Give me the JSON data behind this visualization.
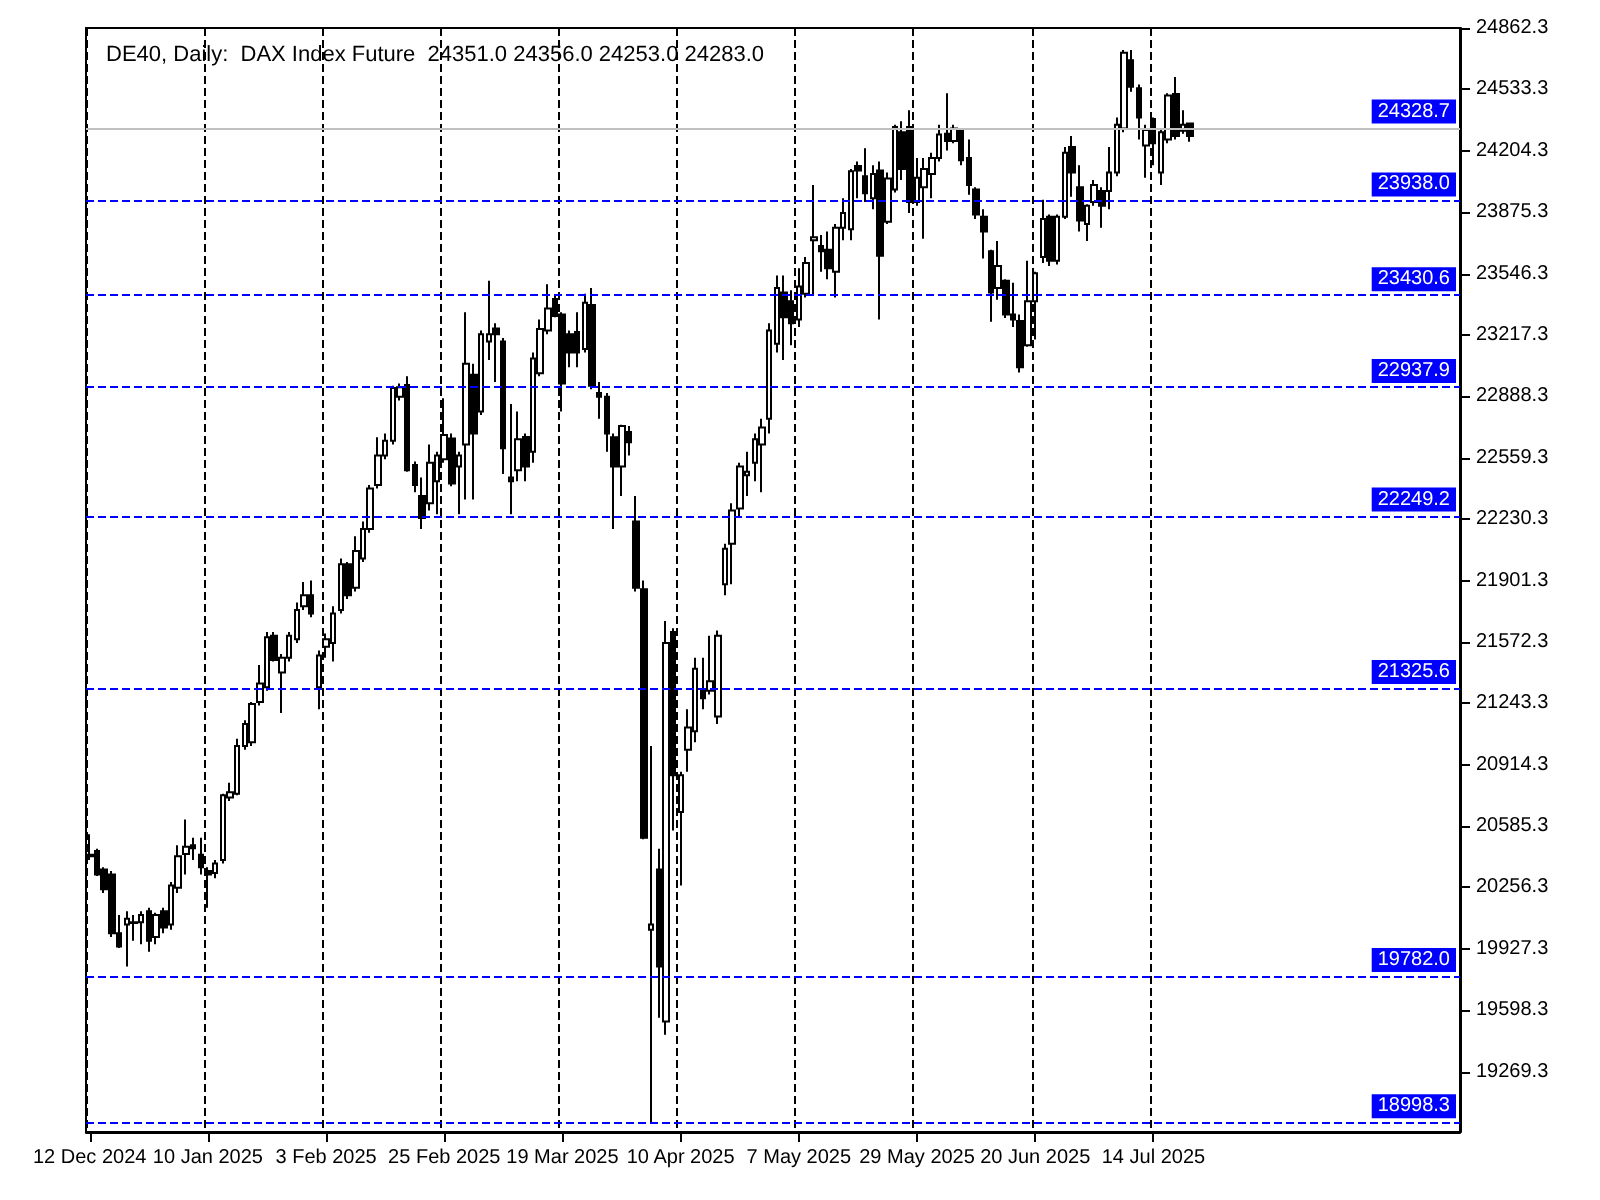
{
  "chart_data": {
    "type": "candlestick",
    "title": "DE40, Daily:  DAX Index Future  24351.0 24356.0 24253.0 24283.0",
    "categories": [
      "12 Dec 2024",
      null,
      null,
      null,
      null,
      null,
      null,
      null,
      null,
      null,
      null,
      null,
      null,
      null,
      null,
      null,
      "10 Jan 2025",
      null,
      null,
      null,
      null,
      null,
      null,
      null,
      null,
      null,
      null,
      null,
      null,
      null,
      null,
      null,
      "3 Feb 2025",
      null,
      null,
      null,
      null,
      null,
      null,
      null,
      null,
      null,
      null,
      null,
      null,
      null,
      null,
      null,
      "25 Feb 2025",
      null,
      null,
      null,
      null,
      null,
      null,
      null,
      null,
      null,
      null,
      null,
      null,
      null,
      null,
      null,
      "19 Mar 2025",
      null,
      null,
      null,
      null,
      null,
      null,
      null,
      null,
      null,
      null,
      null,
      null,
      null,
      null,
      null,
      "10 Apr 2025",
      null,
      null,
      null,
      null,
      null,
      null,
      null,
      null,
      null,
      null,
      null,
      null,
      null,
      null,
      null,
      "7 May 2025",
      null,
      null,
      null,
      null,
      null,
      null,
      null,
      null,
      null,
      null,
      null,
      null,
      null,
      null,
      null,
      "29 May 2025",
      null,
      null,
      null,
      null,
      null,
      null,
      null,
      null,
      null,
      null,
      null,
      null,
      null,
      null,
      null,
      "20 Jun 2025",
      null,
      null,
      null,
      null,
      null,
      null,
      null,
      null,
      null,
      null,
      null,
      null,
      null,
      null,
      null,
      "14 Jul 2025",
      null,
      null,
      null,
      null,
      null,
      null,
      null,
      null,
      null,
      null,
      null,
      null,
      null,
      null,
      null,
      null,
      null,
      null,
      null,
      null,
      null,
      null,
      null,
      null,
      null,
      null,
      null,
      null,
      null,
      null,
      null,
      null,
      null,
      null,
      null,
      null,
      null,
      null,
      null,
      null,
      null
    ],
    "grid": "x",
    "series": [
      {
        "color": "#000000",
        "ohlc": [
          [
            20424,
            20542,
            20404,
            20432
          ],
          [
            20452,
            20464,
            20318,
            20326
          ],
          [
            20353,
            20365,
            20227,
            20247
          ],
          [
            20326,
            20345,
            19991,
            20011
          ],
          [
            20011,
            20109,
            19932,
            19940
          ],
          [
            20058,
            20129,
            19833,
            20089
          ],
          [
            20070,
            20109,
            19971,
            20066
          ],
          [
            20070,
            20129,
            19952,
            20109
          ],
          [
            20129,
            20148,
            19912,
            19971
          ],
          [
            19991,
            20121,
            19952,
            20109
          ],
          [
            20129,
            20148,
            20011,
            20042
          ],
          [
            20058,
            20286,
            20030,
            20267
          ],
          [
            20255,
            20483,
            20227,
            20424
          ],
          [
            20436,
            20621,
            20326,
            20475
          ],
          [
            20483,
            20523,
            20404,
            20467
          ],
          [
            20432,
            20523,
            20326,
            20365
          ],
          [
            20345,
            20365,
            20148,
            20326
          ],
          [
            20334,
            20404,
            20306,
            20385
          ],
          [
            20404,
            20759,
            20385,
            20751
          ],
          [
            20739,
            20818,
            20720,
            20767
          ],
          [
            20759,
            21054,
            20751,
            21015
          ],
          [
            21015,
            21153,
            20995,
            21133
          ],
          [
            21035,
            21251,
            21015,
            21240
          ],
          [
            21251,
            21448,
            21232,
            21350
          ],
          [
            21330,
            21626,
            21311,
            21598
          ],
          [
            21606,
            21626,
            21468,
            21476
          ],
          [
            21409,
            21507,
            21192,
            21488
          ],
          [
            21488,
            21626,
            21468,
            21606
          ],
          [
            21586,
            21783,
            21567,
            21744
          ],
          [
            21763,
            21893,
            21744,
            21823
          ],
          [
            21823,
            21901,
            21704,
            21724
          ],
          [
            21330,
            21527,
            21212,
            21500
          ],
          [
            21547,
            21618,
            21488,
            21586
          ],
          [
            21567,
            21763,
            21468,
            21724
          ],
          [
            21744,
            22020,
            21724,
            21988
          ],
          [
            21988,
            22000,
            21803,
            21823
          ],
          [
            21862,
            22138,
            21842,
            22059
          ],
          [
            22020,
            22217,
            22000,
            22177
          ],
          [
            22177,
            22413,
            22157,
            22394
          ],
          [
            22413,
            22669,
            22394,
            22571
          ],
          [
            22571,
            22689,
            22551,
            22650
          ],
          [
            22650,
            22945,
            22630,
            22933
          ],
          [
            22886,
            22957,
            22866,
            22937
          ],
          [
            22949,
            22996,
            22484,
            22492
          ],
          [
            22520,
            22539,
            22374,
            22413
          ],
          [
            22354,
            22453,
            22177,
            22236
          ],
          [
            22315,
            22630,
            22276,
            22532
          ],
          [
            22433,
            22591,
            22256,
            22571
          ],
          [
            22551,
            22878,
            22532,
            22681
          ],
          [
            22662,
            22689,
            22406,
            22421
          ],
          [
            22512,
            22591,
            22256,
            22571
          ],
          [
            22630,
            23339,
            22335,
            23063
          ],
          [
            23004,
            23063,
            22335,
            22689
          ],
          [
            22807,
            23241,
            22788,
            23221
          ],
          [
            23182,
            23508,
            23083,
            23221
          ],
          [
            23252,
            23280,
            22965,
            23221
          ],
          [
            23182,
            23201,
            22472,
            22610
          ],
          [
            22453,
            22847,
            22256,
            22433
          ],
          [
            22492,
            22807,
            22433,
            22658
          ],
          [
            22670,
            22689,
            22433,
            22512
          ],
          [
            22591,
            23123,
            22532,
            23091
          ],
          [
            23012,
            23300,
            22996,
            23249
          ],
          [
            23241,
            23489,
            23221,
            23359
          ],
          [
            23410,
            23430,
            23312,
            23319
          ],
          [
            23327,
            23339,
            22807,
            22957
          ],
          [
            23221,
            23241,
            23044,
            23123
          ],
          [
            23233,
            23339,
            23044,
            23123
          ],
          [
            23142,
            23438,
            23123,
            23390
          ],
          [
            23378,
            23469,
            22926,
            22945
          ],
          [
            22906,
            22965,
            22768,
            22886
          ],
          [
            22886,
            22906,
            22591,
            22689
          ],
          [
            22669,
            22689,
            22177,
            22512
          ],
          [
            22512,
            22736,
            22354,
            22729
          ],
          [
            22697,
            22729,
            22571,
            22642
          ],
          [
            22217,
            22354,
            21842,
            21862
          ],
          [
            21854,
            21901,
            20515,
            20523
          ],
          [
            20030,
            21015,
            18998,
            20058
          ],
          [
            20353,
            20464,
            19558,
            19833
          ],
          [
            19538,
            21685,
            19467,
            21567
          ],
          [
            21626,
            21645,
            20562,
            20858
          ],
          [
            20661,
            20877,
            20267,
            20858
          ],
          [
            20995,
            21212,
            20877,
            21114
          ],
          [
            21094,
            21488,
            21035,
            21429
          ],
          [
            21311,
            21488,
            21212,
            21271
          ],
          [
            21311,
            21606,
            21291,
            21362
          ],
          [
            21173,
            21634,
            21133,
            21606
          ],
          [
            21882,
            22098,
            21823,
            22071
          ],
          [
            22098,
            22315,
            21882,
            22276
          ],
          [
            22287,
            22532,
            22236,
            22512
          ],
          [
            22465,
            22591,
            22354,
            22484
          ],
          [
            22532,
            22689,
            22433,
            22658
          ],
          [
            22630,
            22768,
            22374,
            22721
          ],
          [
            22768,
            23280,
            22689,
            23241
          ],
          [
            23170,
            23536,
            23123,
            23469
          ],
          [
            23445,
            23536,
            23083,
            23312
          ],
          [
            23398,
            23457,
            23162,
            23280
          ],
          [
            23300,
            23575,
            23260,
            23477
          ],
          [
            23438,
            23635,
            23418,
            23603
          ],
          [
            23725,
            24021,
            23430,
            23741
          ],
          [
            23694,
            23753,
            23556,
            23666
          ],
          [
            23674,
            23772,
            23516,
            23575
          ],
          [
            23556,
            23812,
            23418,
            23792
          ],
          [
            23792,
            23950,
            23725,
            23871
          ],
          [
            23784,
            24107,
            23725,
            24095
          ],
          [
            24123,
            24147,
            23950,
            24099
          ],
          [
            24068,
            24218,
            23930,
            23977
          ],
          [
            23950,
            24127,
            23891,
            24080
          ],
          [
            24099,
            24147,
            23300,
            23642
          ],
          [
            23824,
            24088,
            23812,
            24056
          ],
          [
            23997,
            24344,
            23981,
            24332
          ],
          [
            24304,
            24363,
            24048,
            24107
          ],
          [
            24332,
            24422,
            23871,
            23930
          ],
          [
            23930,
            24166,
            23910,
            24060
          ],
          [
            24009,
            24166,
            23733,
            24107
          ],
          [
            24080,
            24194,
            23950,
            24166
          ],
          [
            24166,
            24344,
            24147,
            24292
          ],
          [
            24296,
            24513,
            24206,
            24257
          ],
          [
            24257,
            24344,
            24245,
            24324
          ],
          [
            24316,
            24324,
            24127,
            24154
          ],
          [
            24166,
            24265,
            23969,
            24021
          ],
          [
            23997,
            24009,
            23839,
            23863
          ],
          [
            23851,
            23891,
            23627,
            23772
          ],
          [
            23666,
            23674,
            23288,
            23445
          ],
          [
            23469,
            23721,
            23406,
            23587
          ],
          [
            23508,
            23516,
            23308,
            23327
          ],
          [
            23327,
            23497,
            23260,
            23300
          ],
          [
            23292,
            23327,
            23016,
            23044
          ],
          [
            23162,
            23615,
            23154,
            23398
          ],
          [
            23398,
            23556,
            23193,
            23548
          ],
          [
            23635,
            23942,
            23603,
            23839
          ],
          [
            23851,
            23863,
            23587,
            23615
          ],
          [
            23615,
            23863,
            23595,
            23851
          ],
          [
            23851,
            24225,
            23839,
            24194
          ],
          [
            24225,
            24284,
            23958,
            24088
          ],
          [
            24009,
            24127,
            23772,
            23831
          ],
          [
            23812,
            23918,
            23721,
            23910
          ],
          [
            23930,
            24048,
            23910,
            24021
          ],
          [
            23989,
            24009,
            23792,
            23910
          ],
          [
            23989,
            24225,
            23891,
            24088
          ],
          [
            24088,
            24383,
            24068,
            24344
          ],
          [
            24324,
            24745,
            24304,
            24730
          ],
          [
            24690,
            24745,
            24521,
            24548
          ],
          [
            24540,
            24560,
            24265,
            24383
          ],
          [
            24233,
            24344,
            24060,
            24316
          ],
          [
            24375,
            24383,
            24127,
            24245
          ],
          [
            24088,
            24324,
            24021,
            24304
          ],
          [
            24265,
            24513,
            24245,
            24501
          ],
          [
            24509,
            24600,
            24265,
            24284
          ],
          [
            24312,
            24422,
            24296,
            24344
          ],
          [
            24351,
            24356,
            24253,
            24283
          ],
          null,
          null,
          null,
          null,
          null,
          null,
          null,
          null,
          null,
          null,
          null,
          null,
          null,
          null,
          null,
          null,
          null,
          null,
          null,
          null,
          null,
          null,
          null,
          null,
          null,
          null,
          null,
          null,
          null,
          null,
          null,
          null,
          null,
          null,
          null,
          null
        ]
      }
    ],
    "ylim": [
      18946,
      24862.3
    ],
    "yticks": [
      24862.3,
      24533.3,
      24204.3,
      23875.3,
      23546.3,
      23217.3,
      22888.3,
      22559.3,
      22230.3,
      21901.3,
      21572.3,
      21243.3,
      20914.3,
      20585.3,
      20256.3,
      19927.3,
      19598.3,
      19269.3
    ],
    "ref_lines": [
      {
        "axis": "y",
        "value": 24328.7,
        "label": "24328.7",
        "color": "#c0c0c0",
        "line_style": "solid"
      },
      {
        "axis": "y",
        "value": 23938.0,
        "label": "23938.0",
        "color": "#0000ff",
        "line_style": "dashed"
      },
      {
        "axis": "y",
        "value": 23430.6,
        "label": "23430.6",
        "color": "#0000ff",
        "line_style": "dashed"
      },
      {
        "axis": "y",
        "value": 22937.9,
        "label": "22937.9",
        "color": "#0000ff",
        "line_style": "dashed"
      },
      {
        "axis": "y",
        "value": 22249.2,
        "label": "22249.2",
        "color": "#0000ff",
        "line_style": "dashed"
      },
      {
        "axis": "y",
        "value": 21325.6,
        "label": "21325.6",
        "color": "#0000ff",
        "line_style": "dashed"
      },
      {
        "axis": "y",
        "value": 19782.0,
        "label": "19782.0",
        "color": "#0000ff",
        "line_style": "dashed"
      },
      {
        "axis": "y",
        "value": 18998.3,
        "label": "18998.3",
        "color": "#0000ff",
        "line_style": "dashed"
      }
    ]
  }
}
